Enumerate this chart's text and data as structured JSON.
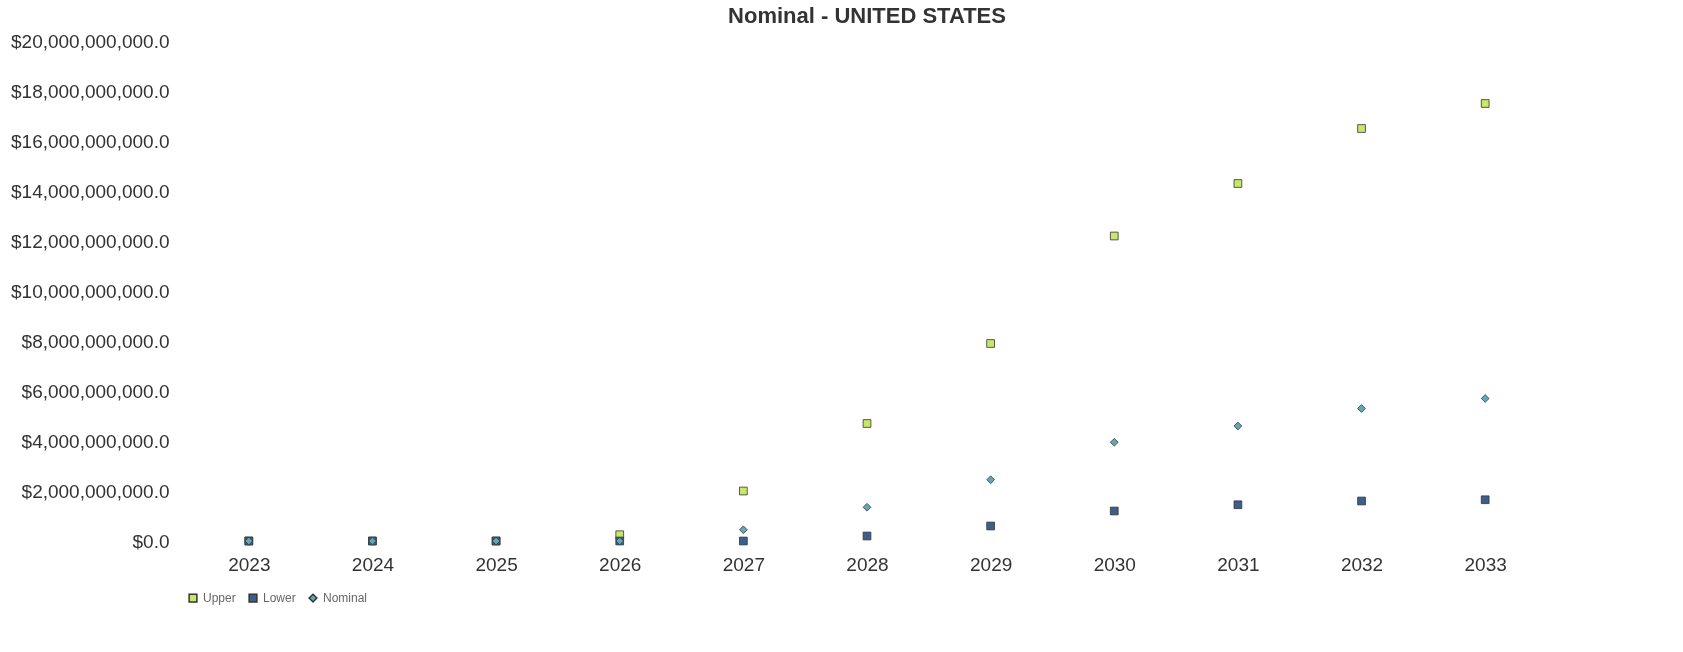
{
  "chart_data": {
    "type": "scatter",
    "title": "Nominal - UNITED STATES",
    "categories": [
      "2023",
      "2024",
      "2025",
      "2026",
      "2027",
      "2028",
      "2029",
      "2030",
      "2031",
      "2032",
      "2033"
    ],
    "series": [
      {
        "name": "Upper",
        "color": "#c8e66a",
        "marker": "square",
        "values": [
          0,
          0,
          0,
          250000000,
          2000000000,
          4700000000,
          7900000000,
          12200000000,
          14300000000,
          16500000000,
          17500000000
        ]
      },
      {
        "name": "Lower",
        "color": "#3b5f8a",
        "marker": "square",
        "values": [
          0,
          0,
          0,
          0,
          0,
          200000000,
          600000000,
          1200000000,
          1450000000,
          1600000000,
          1650000000
        ]
      },
      {
        "name": "Nominal",
        "color": "#5fa8b8",
        "marker": "diamond",
        "values": [
          0,
          0,
          0,
          0,
          450000000,
          1350000000,
          2450000000,
          3950000000,
          4600000000,
          5300000000,
          5700000000
        ]
      }
    ],
    "ylim": [
      0,
      20000000000
    ],
    "yticks": [
      {
        "value": 0,
        "label": "$0.0"
      },
      {
        "value": 2000000000,
        "label": "$2,000,000,000.0"
      },
      {
        "value": 4000000000,
        "label": "$4,000,000,000.0"
      },
      {
        "value": 6000000000,
        "label": "$6,000,000,000.0"
      },
      {
        "value": 8000000000,
        "label": "$8,000,000,000.0"
      },
      {
        "value": 10000000000,
        "label": "$10,000,000,000.0"
      },
      {
        "value": 12000000000,
        "label": "$12,000,000,000.0"
      },
      {
        "value": 14000000000,
        "label": "$14,000,000,000.0"
      },
      {
        "value": 16000000000,
        "label": "$16,000,000,000.0"
      },
      {
        "value": 18000000000,
        "label": "$18,000,000,000.0"
      },
      {
        "value": 20000000000,
        "label": "$20,000,000,000.0"
      }
    ],
    "grid": false,
    "legend": "bottom"
  }
}
